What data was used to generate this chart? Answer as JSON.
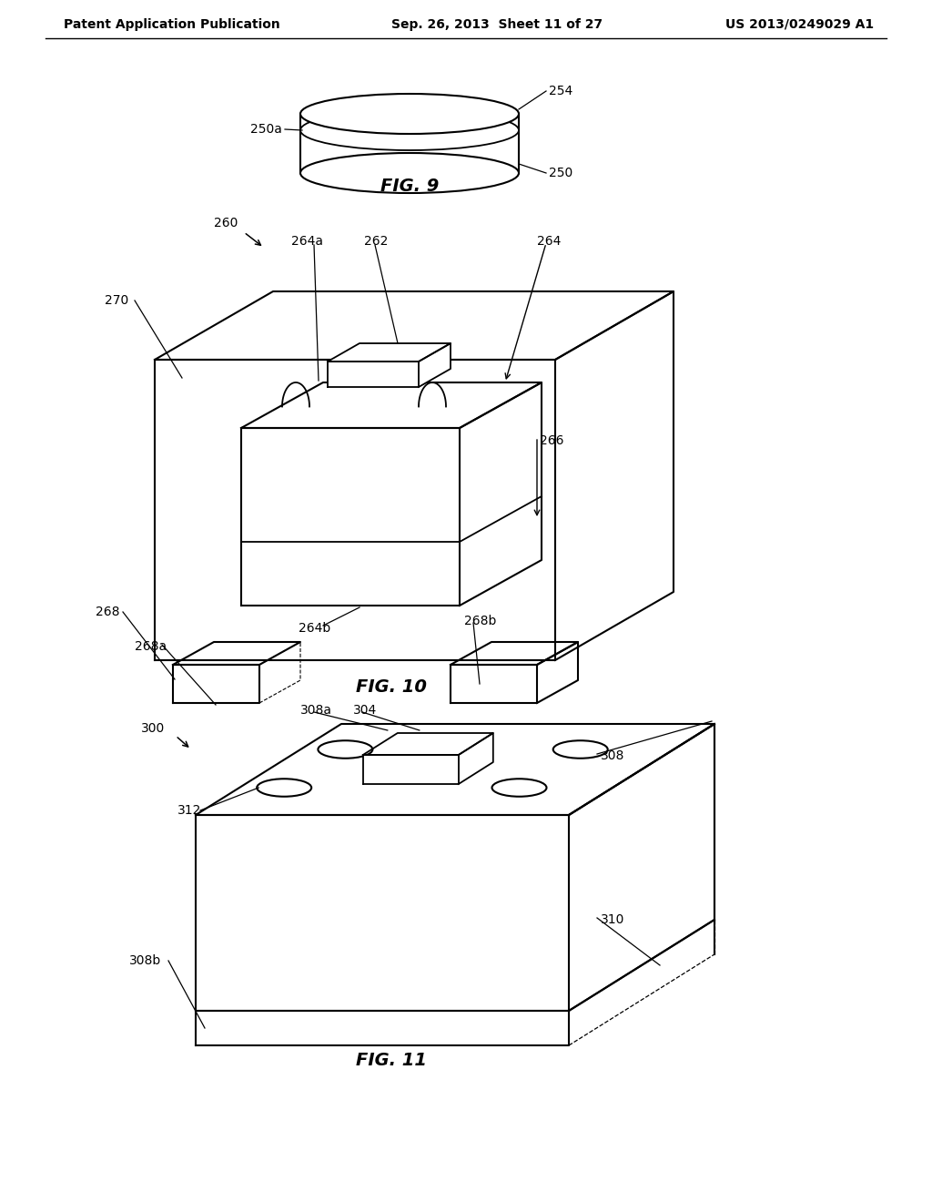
{
  "header_left": "Patent Application Publication",
  "header_mid": "Sep. 26, 2013  Sheet 11 of 27",
  "header_right": "US 2013/0249029 A1",
  "fig9_caption": "FIG. 9",
  "fig10_caption": "FIG. 10",
  "fig11_caption": "FIG. 11",
  "background_color": "#ffffff",
  "line_color": "#000000",
  "label_color": "#000000"
}
